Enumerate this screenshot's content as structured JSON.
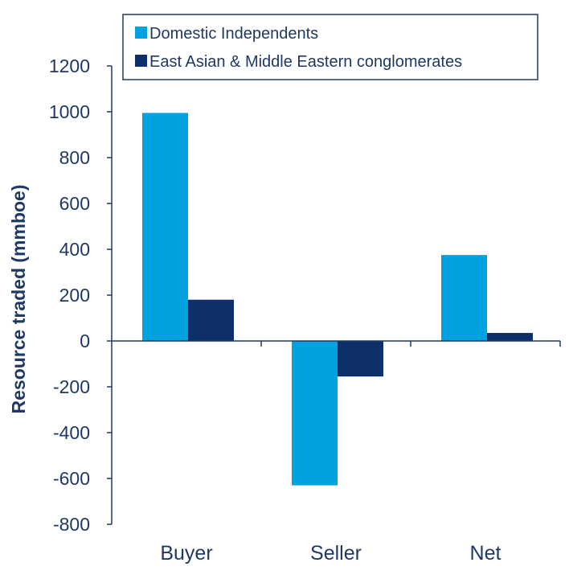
{
  "chart_data": {
    "type": "bar",
    "categories": [
      "Buyer",
      "Seller",
      "Net"
    ],
    "series": [
      {
        "name": "Domestic Independents",
        "values": [
          995,
          -630,
          375
        ],
        "color": "#00a3e0"
      },
      {
        "name": "East Asian & Middle Eastern conglomerates",
        "values": [
          180,
          -155,
          35
        ],
        "color": "#0f2f6b"
      }
    ],
    "title": "",
    "xlabel": "",
    "ylabel": "Resource traded (mmboe)",
    "ylim": [
      -800,
      1200
    ],
    "yticks": [
      "1200",
      "1000",
      "800",
      "600",
      "400",
      "200",
      "0",
      "-200",
      "-400",
      "-600",
      "-800"
    ],
    "grid": false,
    "legend_position": "top"
  }
}
